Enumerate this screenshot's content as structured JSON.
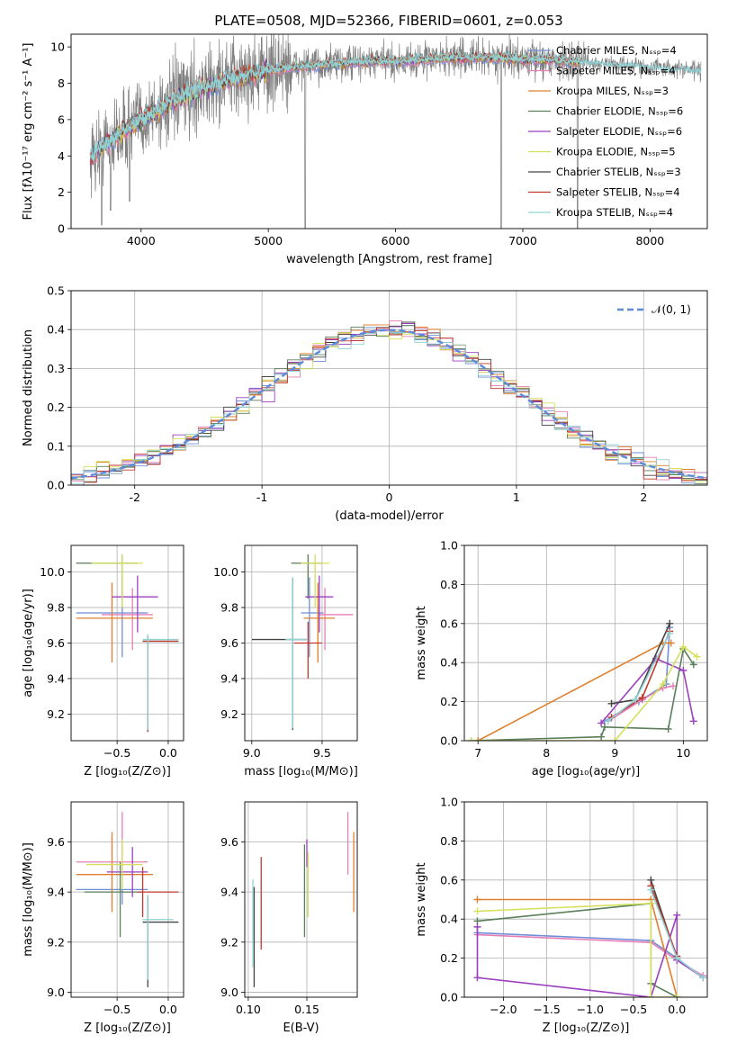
{
  "figure_title": "PLATE=0508, MJD=52366, FIBERID=0601, z=0.053",
  "colors": {
    "Chabrier MILES": "#6f8fd8",
    "Salpeter MILES": "#e67fb6",
    "Kroupa MILES": "#e0802e",
    "Chabrier ELODIE": "#5a7f5a",
    "Salpeter ELODIE": "#9b3fbf",
    "Kroupa ELODIE": "#d4e05a",
    "Chabrier STELIB": "#444444",
    "Salpeter STELIB": "#c0392b",
    "Kroupa STELIB": "#8fd3d6",
    "normal": "#5b8bd9",
    "data": "#7f7f7f",
    "grid": "#b0b0b0"
  },
  "chart_data": [
    {
      "id": "spectrum",
      "type": "line",
      "title": "PLATE=0508, MJD=52366, FIBERID=0601, z=0.053",
      "xlabel": "wavelength [Angstrom, rest frame]",
      "ylabel": "Flux [fλ10⁻¹⁷ erg cm⁻² s⁻¹ A⁻¹]",
      "xlim": [
        3450,
        8450
      ],
      "ylim": [
        0,
        10.7
      ],
      "xticks": [
        4000,
        5000,
        6000,
        7000,
        8000
      ],
      "yticks": [
        0,
        2,
        4,
        6,
        8,
        10
      ],
      "grid": false,
      "legend_position": "right",
      "legend": [
        {
          "label": "Chabrier MILES, Nₛₛₚ=4",
          "series": "Chabrier MILES"
        },
        {
          "label": "Salpeter MILES, Nₛₛₚ=4",
          "series": "Salpeter MILES"
        },
        {
          "label": "Kroupa MILES, Nₛₛₚ=3",
          "series": "Kroupa MILES"
        },
        {
          "label": "Chabrier ELODIE, Nₛₛₚ=6",
          "series": "Chabrier ELODIE"
        },
        {
          "label": "Salpeter ELODIE, Nₛₛₚ=6",
          "series": "Salpeter ELODIE"
        },
        {
          "label": "Kroupa ELODIE, Nₛₛₚ=5",
          "series": "Kroupa ELODIE"
        },
        {
          "label": "Chabrier STELIB, Nₛₛₚ=3",
          "series": "Chabrier STELIB"
        },
        {
          "label": "Salpeter STELIB, Nₛₛₚ=4",
          "series": "Salpeter STELIB"
        },
        {
          "label": "Kroupa STELIB, Nₛₛₚ=4",
          "series": "Kroupa STELIB"
        }
      ],
      "continuum": {
        "x": [
          3600,
          3700,
          3800,
          3900,
          4000,
          4100,
          4200,
          4300,
          4400,
          4600,
          4800,
          5000,
          5200,
          5400,
          5600,
          5800,
          6000,
          6200,
          6400,
          6600,
          6800,
          7000,
          7200,
          7400,
          7600,
          7800,
          8000,
          8200,
          8400
        ],
        "y": [
          3.9,
          4.6,
          5.0,
          5.6,
          6.0,
          6.4,
          6.8,
          7.2,
          7.5,
          8.0,
          8.4,
          8.7,
          8.9,
          9.0,
          9.1,
          9.2,
          9.2,
          9.3,
          9.4,
          9.4,
          9.4,
          9.3,
          9.3,
          9.2,
          9.1,
          9.0,
          8.9,
          8.8,
          8.7
        ]
      },
      "data_dips": [
        [
          3690,
          0.2
        ],
        [
          3760,
          1.0
        ],
        [
          3910,
          1.5
        ],
        [
          5290,
          0.0
        ],
        [
          6830,
          0.0
        ],
        [
          7430,
          0.0
        ]
      ]
    },
    {
      "id": "residuals",
      "type": "line",
      "xlabel": "(data-model)/error",
      "ylabel": "Normed distribution",
      "xlim": [
        -2.5,
        2.5
      ],
      "ylim": [
        0,
        0.5
      ],
      "xticks": [
        -2,
        -1,
        0,
        1,
        2
      ],
      "yticks": [
        0.0,
        0.1,
        0.2,
        0.3,
        0.4,
        0.5
      ],
      "grid": true,
      "legend_position": "upper right",
      "normal_label": "𝒩(0, 1)",
      "bin_width": 0.1
    },
    {
      "id": "age-vs-Z",
      "type": "scatter",
      "xlabel": "Z [log₁₀(Z/Z⊙)]",
      "ylabel": "age  [log₁₀(age/yr)]",
      "xlim": [
        -0.95,
        0.15
      ],
      "ylim": [
        9.05,
        10.15
      ],
      "xticks": [
        -0.5,
        0.0
      ],
      "yticks": [
        9.2,
        9.4,
        9.6,
        9.8,
        10.0
      ],
      "grid": true,
      "points": [
        {
          "series": "Chabrier MILES",
          "x": -0.45,
          "y": 9.77,
          "xerr": [
            0.45,
            0.25
          ],
          "yerr": [
            0.25,
            0.2
          ]
        },
        {
          "series": "Salpeter MILES",
          "x": -0.35,
          "y": 9.76,
          "xerr": [
            0.3,
            0.2
          ],
          "yerr": [
            0.2,
            0.15
          ]
        },
        {
          "series": "Kroupa MILES",
          "x": -0.55,
          "y": 9.74,
          "xerr": [
            0.35,
            0.4
          ],
          "yerr": [
            0.25,
            0.2
          ]
        },
        {
          "series": "Chabrier ELODIE",
          "x": -0.45,
          "y": 10.05,
          "xerr": [
            0.45,
            0.15
          ],
          "yerr": [
            0.2,
            0.05
          ]
        },
        {
          "series": "Salpeter ELODIE",
          "x": -0.3,
          "y": 9.86,
          "xerr": [
            0.25,
            0.2
          ],
          "yerr": [
            0.2,
            0.12
          ]
        },
        {
          "series": "Kroupa ELODIE",
          "x": -0.45,
          "y": 10.05,
          "xerr": [
            0.3,
            0.2
          ],
          "yerr": [
            0.25,
            0.05
          ]
        },
        {
          "series": "Chabrier STELIB",
          "x": -0.2,
          "y": 9.61,
          "xerr": [
            0.05,
            0.3
          ],
          "yerr": [
            0.51,
            0.03
          ]
        },
        {
          "series": "Salpeter STELIB",
          "x": -0.2,
          "y": 9.61,
          "xerr": [
            0.05,
            0.3
          ],
          "yerr": [
            0.51,
            0.03
          ]
        },
        {
          "series": "Kroupa STELIB",
          "x": -0.2,
          "y": 9.62,
          "xerr": [
            0.05,
            0.3
          ],
          "yerr": [
            0.51,
            0.03
          ]
        }
      ]
    },
    {
      "id": "age-vs-mass",
      "type": "scatter",
      "xlabel": "mass [log₁₀(M/M⊙)]",
      "ylabel": "",
      "xlim": [
        8.95,
        9.75
      ],
      "ylim": [
        9.05,
        10.15
      ],
      "xticks": [
        9.0,
        9.5
      ],
      "yticks": [
        9.2,
        9.4,
        9.6,
        9.8,
        10.0
      ],
      "grid": true,
      "points": [
        {
          "series": "Chabrier MILES",
          "x": 9.41,
          "y": 9.77,
          "xerr": [
            0.06,
            0.1
          ],
          "yerr": [
            0.25,
            0.2
          ]
        },
        {
          "series": "Salpeter MILES",
          "x": 9.52,
          "y": 9.76,
          "xerr": [
            0.05,
            0.2
          ],
          "yerr": [
            0.2,
            0.15
          ]
        },
        {
          "series": "Kroupa MILES",
          "x": 9.47,
          "y": 9.74,
          "xerr": [
            0.1,
            0.12
          ],
          "yerr": [
            0.25,
            0.2
          ]
        },
        {
          "series": "Chabrier ELODIE",
          "x": 9.4,
          "y": 10.05,
          "xerr": [
            0.12,
            0.1
          ],
          "yerr": [
            0.2,
            0.05
          ]
        },
        {
          "series": "Salpeter ELODIE",
          "x": 9.48,
          "y": 9.86,
          "xerr": [
            0.1,
            0.1
          ],
          "yerr": [
            0.2,
            0.12
          ]
        },
        {
          "series": "Kroupa ELODIE",
          "x": 9.45,
          "y": 10.05,
          "xerr": [
            0.1,
            0.1
          ],
          "yerr": [
            0.25,
            0.05
          ]
        },
        {
          "series": "Chabrier STELIB",
          "x": 9.29,
          "y": 9.62,
          "xerr": [
            0.29,
            0.1
          ],
          "yerr": [
            0.51,
            0.35
          ]
        },
        {
          "series": "Salpeter STELIB",
          "x": 9.4,
          "y": 9.6,
          "xerr": [
            0.1,
            0.1
          ],
          "yerr": [
            0.2,
            0.12
          ]
        },
        {
          "series": "Kroupa STELIB",
          "x": 9.29,
          "y": 9.62,
          "xerr": [
            0.05,
            0.1
          ],
          "yerr": [
            0.5,
            0.35
          ]
        }
      ]
    },
    {
      "id": "weight-vs-age",
      "type": "line",
      "xlabel": "age  [log₁₀(age/yr)]",
      "ylabel": "mass weight",
      "xlim": [
        6.8,
        10.35
      ],
      "ylim": [
        0,
        1.0
      ],
      "xticks": [
        7,
        8,
        9,
        10
      ],
      "yticks": [
        0.0,
        0.2,
        0.4,
        0.6,
        0.8,
        1.0
      ],
      "grid": true,
      "series": [
        {
          "name": "Chabrier MILES",
          "x": [
            8.85,
            9.35,
            9.75,
            9.8
          ],
          "y": [
            0.1,
            0.2,
            0.29,
            0.58
          ]
        },
        {
          "name": "Salpeter MILES",
          "x": [
            8.9,
            9.4,
            9.7,
            9.85
          ],
          "y": [
            0.1,
            0.21,
            0.27,
            0.28
          ]
        },
        {
          "name": "Kroupa MILES",
          "x": [
            7.0,
            9.7,
            9.82
          ],
          "y": [
            0.0,
            0.5,
            0.5
          ]
        },
        {
          "name": "Chabrier ELODIE",
          "x": [
            6.9,
            8.8,
            8.85,
            9.78,
            10.0,
            10.15
          ],
          "y": [
            0.0,
            0.02,
            0.07,
            0.06,
            0.47,
            0.39
          ]
        },
        {
          "name": "Salpeter ELODIE",
          "x": [
            8.8,
            9.6,
            10.0,
            10.15
          ],
          "y": [
            0.09,
            0.42,
            0.36,
            0.1
          ]
        },
        {
          "name": "Kroupa ELODIE",
          "x": [
            6.9,
            9.0,
            9.7,
            10.0,
            10.2
          ],
          "y": [
            0.0,
            0.0,
            0.29,
            0.48,
            0.43
          ]
        },
        {
          "name": "Chabrier STELIB",
          "x": [
            8.95,
            9.3,
            9.8
          ],
          "y": [
            0.19,
            0.21,
            0.6
          ]
        },
        {
          "name": "Salpeter STELIB",
          "x": [
            8.95,
            9.4,
            9.8
          ],
          "y": [
            0.12,
            0.22,
            0.56
          ]
        },
        {
          "name": "Kroupa STELIB",
          "x": [
            8.9,
            9.3,
            9.8
          ],
          "y": [
            0.1,
            0.21,
            0.55
          ]
        }
      ]
    },
    {
      "id": "mass-vs-Z",
      "type": "scatter",
      "xlabel": "Z [log₁₀(Z/Z⊙)]",
      "ylabel": "mass [log₁₀(M/M⊙)]",
      "xlim": [
        -0.95,
        0.15
      ],
      "ylim": [
        8.98,
        9.76
      ],
      "xticks": [
        -0.5,
        0.0
      ],
      "yticks": [
        9.0,
        9.2,
        9.4,
        9.6
      ],
      "grid": true,
      "points": [
        {
          "series": "Chabrier MILES",
          "x": -0.45,
          "y": 9.41,
          "xerr": [
            0.45,
            0.25
          ],
          "yerr": [
            0.06,
            0.1
          ]
        },
        {
          "series": "Salpeter MILES",
          "x": -0.45,
          "y": 9.52,
          "xerr": [
            0.45,
            0.25
          ],
          "yerr": [
            0.05,
            0.2
          ]
        },
        {
          "series": "Kroupa MILES",
          "x": -0.55,
          "y": 9.47,
          "xerr": [
            0.35,
            0.4
          ],
          "yerr": [
            0.15,
            0.17
          ]
        },
        {
          "series": "Chabrier ELODIE",
          "x": -0.47,
          "y": 9.4,
          "xerr": [
            0.35,
            0.2
          ],
          "yerr": [
            0.18,
            0.12
          ]
        },
        {
          "series": "Salpeter ELODIE",
          "x": -0.35,
          "y": 9.48,
          "xerr": [
            0.25,
            0.15
          ],
          "yerr": [
            0.1,
            0.1
          ]
        },
        {
          "series": "Kroupa ELODIE",
          "x": -0.45,
          "y": 9.51,
          "xerr": [
            0.35,
            0.2
          ],
          "yerr": [
            0.1,
            0.1
          ]
        },
        {
          "series": "Chabrier STELIB",
          "x": -0.2,
          "y": 9.28,
          "xerr": [
            0.05,
            0.3
          ],
          "yerr": [
            0.26,
            0.1
          ]
        },
        {
          "series": "Salpeter STELIB",
          "x": -0.25,
          "y": 9.4,
          "xerr": [
            0.05,
            0.35
          ],
          "yerr": [
            0.1,
            0.1
          ]
        },
        {
          "series": "Kroupa STELIB",
          "x": -0.2,
          "y": 9.29,
          "xerr": [
            0.05,
            0.25
          ],
          "yerr": [
            0.24,
            0.1
          ]
        }
      ]
    },
    {
      "id": "mass-vs-ebv",
      "type": "scatter",
      "xlabel": "E(B-V)",
      "ylabel": "",
      "xlim": [
        0.097,
        0.193
      ],
      "ylim": [
        8.98,
        9.76
      ],
      "xticks": [
        0.1,
        0.15
      ],
      "yticks": [
        9.0,
        9.2,
        9.4,
        9.6
      ],
      "grid": true,
      "points": [
        {
          "series": "Chabrier MILES",
          "x": 0.104,
          "y": 9.3,
          "yerr": [
            0.1,
            0.12
          ]
        },
        {
          "series": "Salpeter MILES",
          "x": 0.185,
          "y": 9.52,
          "yerr": [
            0.05,
            0.2
          ]
        },
        {
          "series": "Kroupa MILES",
          "x": 0.19,
          "y": 9.47,
          "yerr": [
            0.15,
            0.17
          ]
        },
        {
          "series": "Chabrier ELODIE",
          "x": 0.148,
          "y": 9.4,
          "yerr": [
            0.18,
            0.19
          ]
        },
        {
          "series": "Salpeter ELODIE",
          "x": 0.15,
          "y": 9.55,
          "yerr": [
            0.05,
            0.06
          ]
        },
        {
          "series": "Kroupa ELODIE",
          "x": 0.151,
          "y": 9.43,
          "yerr": [
            0.13,
            0.13
          ]
        },
        {
          "series": "Chabrier STELIB",
          "x": 0.105,
          "y": 9.22,
          "yerr": [
            0.2,
            0.2
          ]
        },
        {
          "series": "Salpeter STELIB",
          "x": 0.111,
          "y": 9.36,
          "yerr": [
            0.19,
            0.18
          ]
        },
        {
          "series": "Kroupa STELIB",
          "x": 0.104,
          "y": 9.25,
          "yerr": [
            0.15,
            0.2
          ]
        }
      ]
    },
    {
      "id": "weight-vs-Z",
      "type": "line",
      "xlabel": "Z [log₁₀(Z/Z⊙)]",
      "ylabel": "mass weight",
      "xlim": [
        -2.45,
        0.35
      ],
      "ylim": [
        0,
        1.0
      ],
      "xticks": [
        -2.0,
        -1.5,
        -1.0,
        -0.5,
        0.0
      ],
      "yticks": [
        0.0,
        0.2,
        0.4,
        0.6,
        0.8,
        1.0
      ],
      "grid": true,
      "series": [
        {
          "name": "Chabrier MILES",
          "x": [
            -2.3,
            -0.3,
            0.0,
            0.3
          ],
          "y": [
            0.33,
            0.29,
            0.2,
            0.1
          ]
        },
        {
          "name": "Salpeter MILES",
          "x": [
            -2.3,
            -0.3,
            0.0,
            0.3
          ],
          "y": [
            0.32,
            0.28,
            0.19,
            0.11
          ]
        },
        {
          "name": "Kroupa MILES",
          "x": [
            -2.3,
            -0.3,
            0.0
          ],
          "y": [
            0.5,
            0.5,
            0.0
          ]
        },
        {
          "name": "Chabrier ELODIE",
          "x": [
            -2.3,
            -0.3,
            -0.3,
            0.0
          ],
          "y": [
            0.39,
            0.48,
            0.07,
            0.0
          ]
        },
        {
          "name": "Salpeter ELODIE",
          "x": [
            -2.3,
            -2.3,
            -0.3,
            0.0,
            0.0,
            0.3
          ],
          "y": [
            0.36,
            0.1,
            0.0,
            0.42,
            0.19,
            0.1
          ]
        },
        {
          "name": "Kroupa ELODIE",
          "x": [
            -2.3,
            -0.3,
            -0.3,
            0.0
          ],
          "y": [
            0.44,
            0.48,
            0.0,
            0.0
          ]
        },
        {
          "name": "Chabrier STELIB",
          "x": [
            -0.3,
            0.0
          ],
          "y": [
            0.6,
            0.2
          ]
        },
        {
          "name": "Salpeter STELIB",
          "x": [
            -0.3,
            0.0
          ],
          "y": [
            0.57,
            0.21
          ]
        },
        {
          "name": "Kroupa STELIB",
          "x": [
            -0.3,
            0.0,
            0.3
          ],
          "y": [
            0.55,
            0.2,
            0.1
          ]
        }
      ]
    }
  ]
}
